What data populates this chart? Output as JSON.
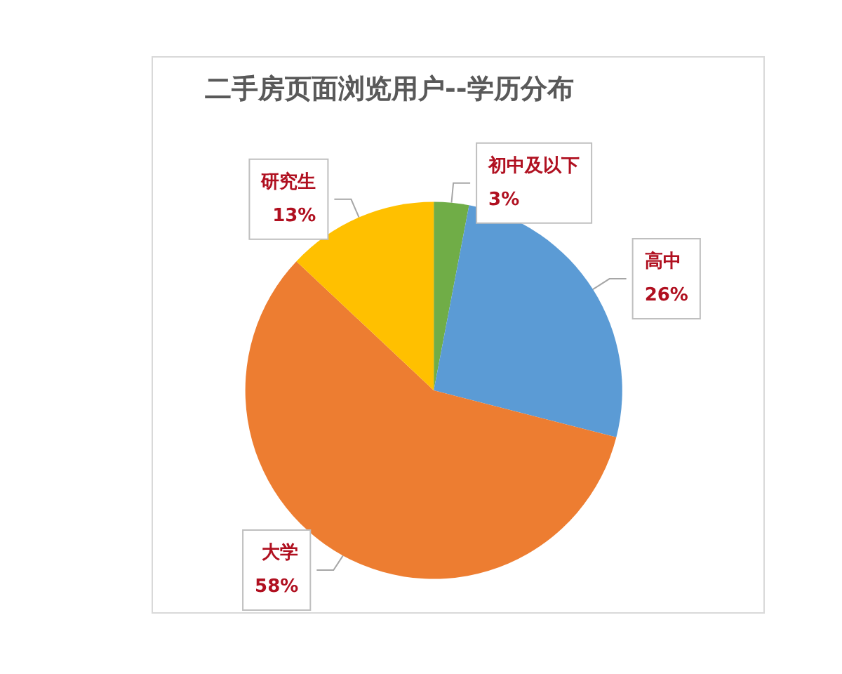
{
  "chart_data": {
    "type": "pie",
    "title": "二手房页面浏览用户--学历分布",
    "categories": [
      "初中及以下",
      "高中",
      "大学",
      "研究生"
    ],
    "values": [
      3,
      26,
      58,
      13
    ],
    "colors": [
      "#70ad47",
      "#5b9bd5",
      "#ed7d31",
      "#ffc000"
    ],
    "value_labels": [
      "3%",
      "26%",
      "58%",
      "13%"
    ]
  }
}
